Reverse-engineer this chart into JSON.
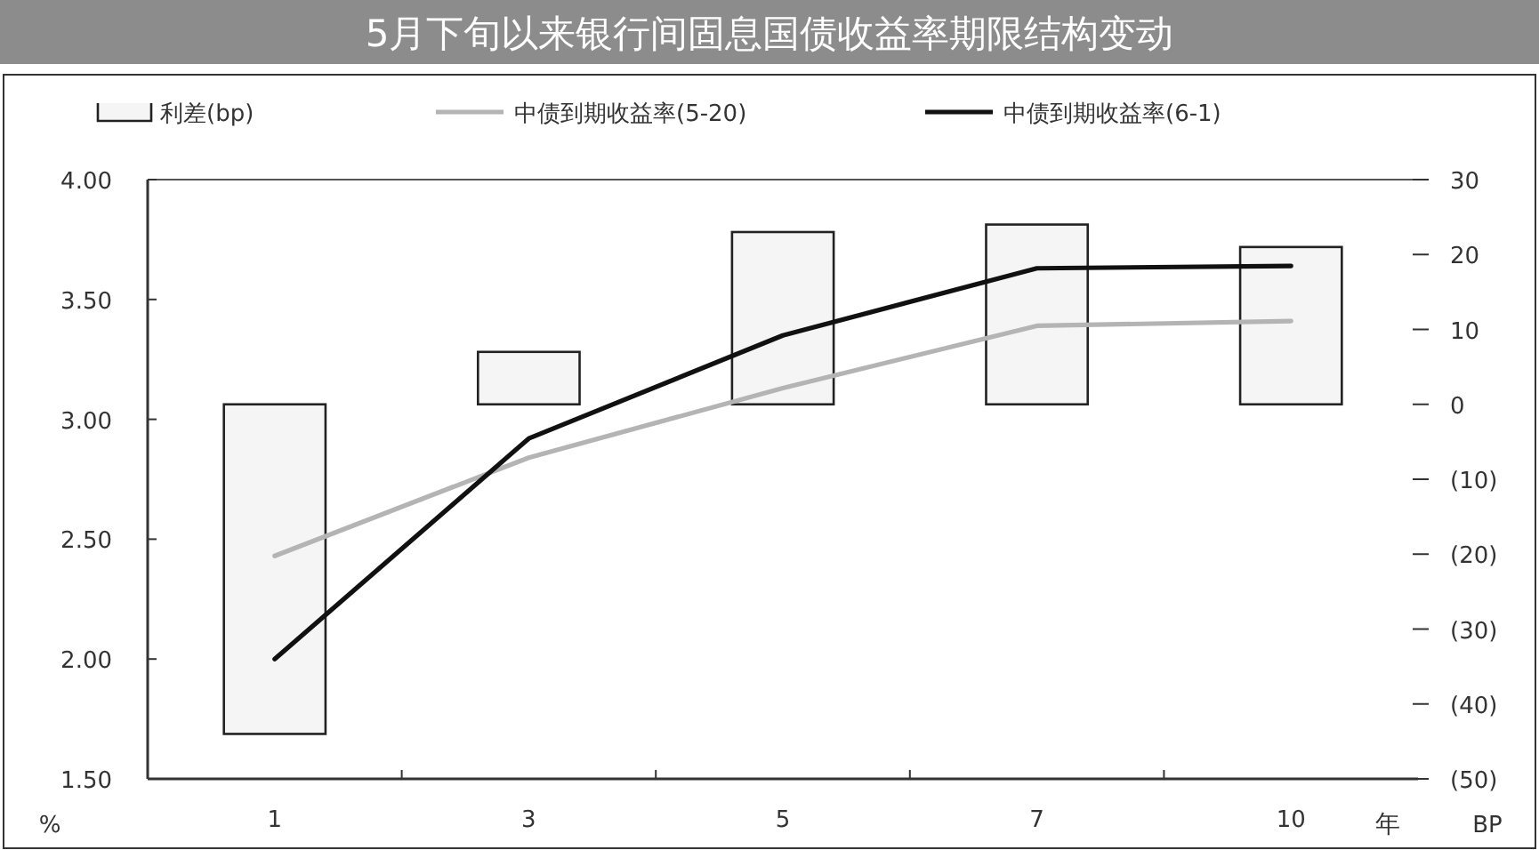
{
  "chart_data": {
    "type": "bar",
    "title": "5月下旬以来银行间固息国债收益率期限结构变动",
    "xlabel": "年",
    "ylabel": "%",
    "y2label": "BP",
    "categories": [
      "1",
      "3",
      "5",
      "7",
      "10"
    ],
    "series": [
      {
        "name": "利差(bp)",
        "axis": "y2",
        "color": "#f5f5f5",
        "values": [
          -44,
          7,
          23,
          24,
          21
        ]
      },
      {
        "name": "中债到期收益率(5-20)",
        "type": "line",
        "color": "#b4b4b4",
        "values": [
          2.43,
          2.84,
          3.13,
          3.39,
          3.41
        ]
      },
      {
        "name": "中债到期收益率(6-1)",
        "type": "line",
        "color": "#111111",
        "values": [
          2.0,
          2.92,
          3.35,
          3.63,
          3.64
        ]
      }
    ],
    "ylim": [
      1.5,
      4.0
    ],
    "yticks": [
      {
        "value": 1.5,
        "label": "1.50"
      },
      {
        "value": 2.0,
        "label": "2.00"
      },
      {
        "value": 2.5,
        "label": "2.50"
      },
      {
        "value": 3.0,
        "label": "3.00"
      },
      {
        "value": 3.5,
        "label": "3.50"
      },
      {
        "value": 4.0,
        "label": "4.00"
      }
    ],
    "y2lim": [
      -50,
      30
    ],
    "y2ticks": [
      {
        "value": -50,
        "label": "(50)"
      },
      {
        "value": -40,
        "label": "(40)"
      },
      {
        "value": -30,
        "label": "(30)"
      },
      {
        "value": -20,
        "label": "(20)"
      },
      {
        "value": -10,
        "label": "(10)"
      },
      0,
      10,
      20,
      30
    ],
    "legend": "top",
    "grid": false,
    "marker": "none",
    "line_style": "solid"
  }
}
